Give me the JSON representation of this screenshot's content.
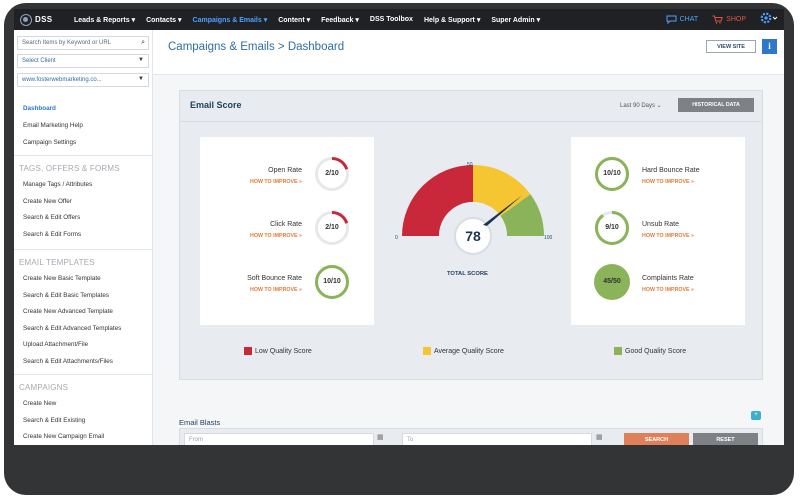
{
  "topnav": {
    "logo_text": "DSS",
    "items": [
      "Leads & Reports ▾",
      "Contacts ▾",
      "Campaigns & Emails ▾",
      "Content ▾",
      "Feedback ▾",
      "DSS Toolbox",
      "Help & Support ▾",
      "Super Admin ▾"
    ],
    "active_index": 2,
    "chat_label": "CHAT",
    "shop_label": "SHOP"
  },
  "sidebar": {
    "search_placeholder": "Search Items by Keyword or URL",
    "select_client": "Select Client",
    "site_select": "www.fosterwebmarketing.co...",
    "main_links": [
      "Dashboard",
      "Email Marketing Help",
      "Campaign Settings"
    ],
    "sections": [
      {
        "title": "TAGS, OFFERS & FORMS",
        "links": [
          "Manage Tags / Attributes",
          "Create New Offer",
          "Search & Edit Offers",
          "Search & Edit Forms"
        ]
      },
      {
        "title": "EMAIL TEMPLATES",
        "links": [
          "Create New Basic Template",
          "Search & Edit Basic Templates",
          "Create New Advanced Template",
          "Search & Edit Advanced Templates",
          "Upload Attachment/File",
          "Search & Edit Attachments/Files"
        ]
      },
      {
        "title": "CAMPAIGNS",
        "links": [
          "Create New",
          "Search & Edit Existing",
          "Create New Campaign Email"
        ]
      }
    ]
  },
  "header": {
    "title": "Campaigns & Emails > Dashboard",
    "view_site": "VIEW SITE",
    "info": "i"
  },
  "email_score": {
    "title": "Email Score",
    "range": "Last 90 Days ⌄",
    "history_button": "HISTORICAL DATA",
    "how_to_improve": "HOW TO IMPROVE »",
    "left_metrics": [
      {
        "label": "Open Rate",
        "value": "2/10",
        "fraction": 0.2
      },
      {
        "label": "Click Rate",
        "value": "2/10",
        "fraction": 0.2
      },
      {
        "label": "Soft Bounce Rate",
        "value": "10/10",
        "fraction": 1.0
      }
    ],
    "right_metrics": [
      {
        "label": "Hard Bounce Rate",
        "value": "10/10",
        "fraction": 1.0
      },
      {
        "label": "Unsub Rate",
        "value": "9/10",
        "fraction": 0.9
      },
      {
        "label": "Complaints Rate",
        "value": "45/50",
        "fraction": 0.9
      }
    ],
    "gauge": {
      "score": "78",
      "score_value": 78,
      "min": "0",
      "mid": "50",
      "max": "100",
      "total_label": "TOTAL SCORE"
    },
    "legend": [
      {
        "label": "Low Quality Score",
        "color": "#c8283a"
      },
      {
        "label": "Average Quality Score",
        "color": "#f5c532"
      },
      {
        "label": "Good Quality Score",
        "color": "#8ab35a"
      }
    ],
    "colors": {
      "low": "#c8283a",
      "average": "#f5c532",
      "good": "#8ab35a"
    }
  },
  "email_blasts": {
    "title": "Email Blasts",
    "from_placeholder": "From",
    "to_placeholder": "To",
    "search_button": "SEARCH",
    "reset_button": "RESET"
  }
}
